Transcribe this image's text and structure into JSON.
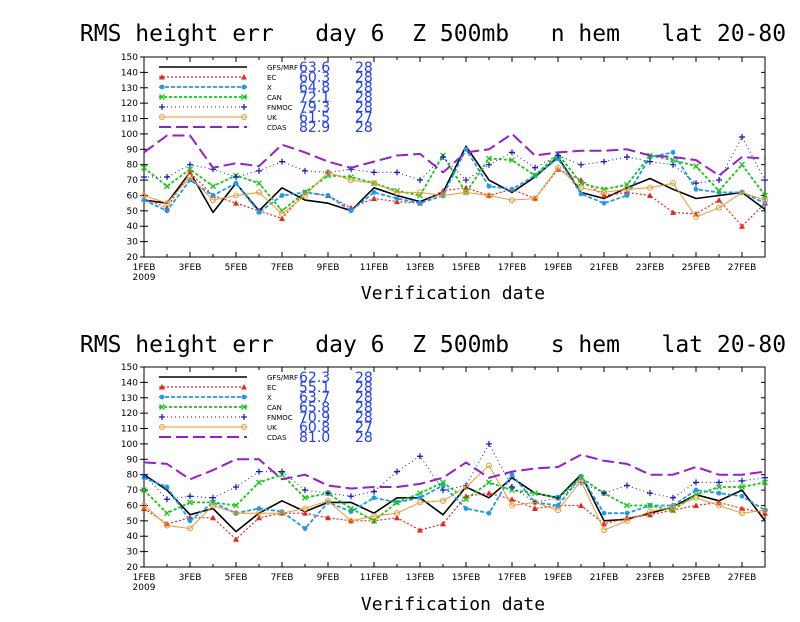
{
  "chart_data": [
    {
      "type": "line",
      "title": "RMS height err   day 6  Z 500mb   n hem   lat 20-80",
      "xlabel": "Verification date",
      "ylim": [
        20,
        150
      ],
      "yticks": [
        20,
        30,
        40,
        50,
        60,
        70,
        80,
        90,
        100,
        110,
        120,
        130,
        140,
        150
      ],
      "xtick_labels": [
        "1FEB",
        "3FEB",
        "5FEB",
        "7FEB",
        "9FEB",
        "11FEB",
        "13FEB",
        "15FEB",
        "17FEB",
        "19FEB",
        "21FEB",
        "23FEB",
        "25FEB",
        "27FEB"
      ],
      "xtick_year": "2009",
      "x": [
        1,
        2,
        3,
        4,
        5,
        6,
        7,
        8,
        9,
        10,
        11,
        12,
        13,
        14,
        15,
        16,
        17,
        18,
        19,
        20,
        21,
        22,
        23,
        24,
        25,
        26,
        27,
        28
      ],
      "series": [
        {
          "name": "GFS/MRF",
          "stat": "63.6",
          "count": "28",
          "color": "#000000",
          "values": [
            57,
            55,
            75,
            49,
            68,
            50,
            65,
            57,
            55,
            50,
            65,
            60,
            56,
            62,
            92,
            70,
            62,
            72,
            85,
            62,
            58,
            65,
            71,
            64,
            58,
            60,
            62,
            51
          ]
        },
        {
          "name": "EC",
          "stat": "60.3",
          "count": "28",
          "color": "#e8281e",
          "values": [
            58,
            52,
            75,
            60,
            55,
            50,
            45,
            62,
            60,
            52,
            58,
            56,
            55,
            63,
            65,
            60,
            64,
            58,
            77,
            70,
            60,
            62,
            60,
            49,
            48,
            57,
            40,
            55
          ]
        },
        {
          "name": "X",
          "stat": "64.8",
          "count": "28",
          "color": "#1e9be8",
          "values": [
            57,
            50,
            70,
            60,
            68,
            49,
            60,
            62,
            60,
            50,
            62,
            58,
            55,
            60,
            90,
            66,
            64,
            73,
            84,
            61,
            55,
            60,
            85,
            88,
            64,
            62,
            62,
            55
          ]
        },
        {
          "name": "CAN",
          "stat": "72.1",
          "count": "28",
          "color": "#14c814",
          "values": [
            78,
            66,
            77,
            66,
            73,
            68,
            50,
            62,
            73,
            72,
            68,
            63,
            60,
            86,
            62,
            84,
            83,
            73,
            87,
            68,
            64,
            67,
            86,
            83,
            79,
            63,
            80,
            60
          ]
        },
        {
          "name": "FNMOC",
          "stat": "79.3",
          "count": "28",
          "color": "#1414b4",
          "values": [
            72,
            72,
            80,
            77,
            72,
            76,
            82,
            76,
            75,
            77,
            75,
            75,
            70,
            85,
            70,
            80,
            88,
            78,
            86,
            80,
            82,
            85,
            82,
            80,
            68,
            70,
            98,
            70
          ]
        },
        {
          "name": "UK",
          "stat": "61.5",
          "count": "27",
          "color": "#e69b32",
          "values": [
            60,
            55,
            72,
            57,
            60,
            62,
            48,
            60,
            75,
            70,
            68,
            62,
            62,
            60,
            62,
            60,
            57,
            58,
            78,
            65,
            62,
            64,
            65,
            68,
            46,
            52,
            62,
            57
          ]
        },
        {
          "name": "CDAS",
          "stat": "82.9",
          "count": "28",
          "color": "#961ecd",
          "values": [
            88,
            99,
            99,
            78,
            81,
            79,
            93,
            88,
            82,
            78,
            82,
            86,
            87,
            75,
            88,
            90,
            100,
            86,
            88,
            89,
            89,
            90,
            86,
            85,
            83,
            73,
            85,
            84
          ]
        }
      ]
    },
    {
      "type": "line",
      "title": "RMS height err   day 6  Z 500mb   s hem   lat 20-80",
      "xlabel": "Verification date",
      "ylim": [
        20,
        150
      ],
      "yticks": [
        20,
        30,
        40,
        50,
        60,
        70,
        80,
        90,
        100,
        110,
        120,
        130,
        140,
        150
      ],
      "xtick_labels": [
        "1FEB",
        "3FEB",
        "5FEB",
        "7FEB",
        "9FEB",
        "11FEB",
        "13FEB",
        "15FEB",
        "17FEB",
        "19FEB",
        "21FEB",
        "23FEB",
        "25FEB",
        "27FEB"
      ],
      "xtick_year": "2009",
      "x": [
        1,
        2,
        3,
        4,
        5,
        6,
        7,
        8,
        9,
        10,
        11,
        12,
        13,
        14,
        15,
        16,
        17,
        18,
        19,
        20,
        21,
        22,
        23,
        24,
        25,
        26,
        27,
        28
      ],
      "series": [
        {
          "name": "GFS/MRF",
          "stat": "62.3",
          "count": "28",
          "color": "#000000",
          "values": [
            80,
            70,
            54,
            58,
            43,
            55,
            63,
            56,
            62,
            62,
            55,
            65,
            65,
            54,
            72,
            65,
            78,
            68,
            65,
            80,
            50,
            51,
            55,
            59,
            67,
            63,
            70,
            50
          ]
        },
        {
          "name": "EC",
          "stat": "55.1",
          "count": "28",
          "color": "#e8281e",
          "values": [
            58,
            48,
            52,
            52,
            38,
            52,
            55,
            55,
            52,
            50,
            50,
            52,
            44,
            48,
            66,
            68,
            64,
            58,
            60,
            60,
            48,
            52,
            54,
            57,
            60,
            62,
            58,
            55
          ]
        },
        {
          "name": "X",
          "stat": "63.7",
          "count": "28",
          "color": "#1e9be8",
          "values": [
            78,
            72,
            50,
            62,
            55,
            58,
            56,
            45,
            62,
            56,
            65,
            62,
            65,
            73,
            58,
            55,
            80,
            62,
            60,
            79,
            55,
            55,
            60,
            60,
            70,
            68,
            66,
            57
          ]
        },
        {
          "name": "CAN",
          "stat": "65.8",
          "count": "28",
          "color": "#14c814",
          "values": [
            70,
            55,
            62,
            62,
            60,
            75,
            80,
            65,
            68,
            58,
            50,
            62,
            68,
            75,
            64,
            75,
            70,
            68,
            65,
            78,
            68,
            60,
            60,
            57,
            67,
            72,
            72,
            75
          ]
        },
        {
          "name": "FNMOC",
          "stat": "70.9",
          "count": "28",
          "color": "#1414b4",
          "values": [
            80,
            64,
            66,
            65,
            72,
            82,
            82,
            70,
            68,
            66,
            69,
            82,
            92,
            70,
            73,
            100,
            72,
            62,
            65,
            75,
            68,
            73,
            68,
            65,
            75,
            75,
            76,
            78
          ]
        },
        {
          "name": "UK",
          "stat": "60.8",
          "count": "27",
          "color": "#e69b32",
          "values": [
            60,
            47,
            45,
            60,
            55,
            55,
            55,
            58,
            63,
            50,
            53,
            55,
            62,
            63,
            72,
            86,
            60,
            62,
            57,
            76,
            44,
            50,
            56,
            59,
            65,
            60,
            55,
            57
          ]
        },
        {
          "name": "CDAS",
          "stat": "81.0",
          "count": "28",
          "color": "#961ecd",
          "values": [
            88,
            87,
            77,
            83,
            90,
            90,
            77,
            80,
            73,
            71,
            72,
            72,
            74,
            78,
            88,
            78,
            82,
            84,
            85,
            93,
            89,
            87,
            80,
            80,
            85,
            80,
            80,
            82
          ]
        }
      ]
    }
  ]
}
